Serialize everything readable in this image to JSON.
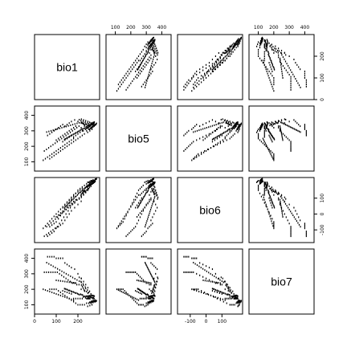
{
  "chart_data": {
    "type": "scatter",
    "title": "",
    "variables": [
      "bio1",
      "bio5",
      "bio6",
      "bio7"
    ],
    "ranges": {
      "bio1": [
        0,
        300
      ],
      "bio5": [
        40,
        460
      ],
      "bio6": [
        -180,
        230
      ],
      "bio7": [
        40,
        460
      ]
    },
    "ticks": {
      "bio1": [
        0,
        100,
        200
      ],
      "bio5": [
        100,
        200,
        300,
        400
      ],
      "bio6": [
        -100,
        0,
        100
      ],
      "bio7": [
        100,
        200,
        300,
        400
      ]
    },
    "tick_labels": {
      "bio1": {
        "top": [],
        "bottom": [
          "0",
          "100",
          "200"
        ],
        "left": [],
        "right": [
          "0",
          "100",
          "200"
        ]
      },
      "bio5": {
        "top": [
          "100",
          "200",
          "300",
          "400"
        ],
        "bottom": [],
        "left": [
          "100",
          "200",
          "300",
          "400"
        ],
        "right": []
      },
      "bio6": {
        "top": [],
        "bottom": [
          "-100",
          "0",
          "100"
        ],
        "left": [],
        "right": [
          "-100",
          "0",
          "100"
        ]
      },
      "bio7": {
        "top": [
          "100",
          "200",
          "300",
          "400"
        ],
        "bottom": [],
        "left": [
          "100",
          "200",
          "300",
          "400"
        ],
        "right": []
      }
    },
    "grid": false,
    "legend": "none",
    "point_color": "#000000",
    "samples": [
      [
        230,
        330,
        140,
        190
      ],
      [
        240,
        340,
        150,
        185
      ],
      [
        250,
        345,
        160,
        180
      ],
      [
        260,
        350,
        175,
        170
      ],
      [
        255,
        330,
        180,
        150
      ],
      [
        265,
        340,
        190,
        145
      ],
      [
        270,
        345,
        195,
        140
      ],
      [
        275,
        350,
        200,
        140
      ],
      [
        280,
        340,
        205,
        130
      ],
      [
        245,
        320,
        170,
        150
      ],
      [
        235,
        310,
        165,
        145
      ],
      [
        225,
        300,
        150,
        150
      ],
      [
        215,
        320,
        120,
        200
      ],
      [
        205,
        330,
        100,
        230
      ],
      [
        195,
        320,
        90,
        230
      ],
      [
        185,
        310,
        70,
        240
      ],
      [
        175,
        300,
        60,
        240
      ],
      [
        165,
        290,
        40,
        250
      ],
      [
        155,
        280,
        20,
        260
      ],
      [
        145,
        270,
        0,
        270
      ],
      [
        135,
        260,
        -20,
        280
      ],
      [
        125,
        250,
        -40,
        290
      ],
      [
        115,
        240,
        -60,
        300
      ],
      [
        105,
        230,
        -80,
        310
      ],
      [
        95,
        220,
        -90,
        310
      ],
      [
        85,
        210,
        -100,
        310
      ],
      [
        75,
        200,
        -110,
        310
      ],
      [
        65,
        190,
        -120,
        310
      ],
      [
        55,
        180,
        -130,
        310
      ],
      [
        45,
        170,
        -140,
        310
      ],
      [
        240,
        300,
        190,
        110
      ],
      [
        250,
        310,
        200,
        110
      ],
      [
        260,
        320,
        210,
        110
      ],
      [
        270,
        330,
        215,
        115
      ],
      [
        280,
        340,
        220,
        120
      ],
      [
        245,
        290,
        200,
        90
      ],
      [
        255,
        300,
        205,
        95
      ],
      [
        265,
        310,
        210,
        100
      ],
      [
        230,
        280,
        180,
        100
      ],
      [
        220,
        270,
        170,
        100
      ],
      [
        210,
        260,
        160,
        100
      ],
      [
        200,
        250,
        150,
        100
      ],
      [
        190,
        240,
        130,
        110
      ],
      [
        180,
        230,
        110,
        120
      ],
      [
        170,
        220,
        90,
        130
      ],
      [
        160,
        210,
        70,
        140
      ],
      [
        150,
        200,
        50,
        150
      ],
      [
        140,
        190,
        30,
        160
      ],
      [
        130,
        180,
        10,
        170
      ],
      [
        120,
        170,
        -10,
        180
      ],
      [
        110,
        160,
        -30,
        190
      ],
      [
        100,
        150,
        -50,
        200
      ],
      [
        90,
        140,
        -60,
        200
      ],
      [
        80,
        130,
        -70,
        200
      ],
      [
        70,
        120,
        -80,
        200
      ],
      [
        215,
        350,
        80,
        270
      ],
      [
        200,
        360,
        60,
        300
      ],
      [
        185,
        370,
        40,
        330
      ],
      [
        170,
        360,
        20,
        340
      ],
      [
        160,
        350,
        0,
        350
      ],
      [
        150,
        340,
        -20,
        360
      ],
      [
        140,
        330,
        -40,
        370
      ],
      [
        130,
        340,
        -60,
        400
      ],
      [
        120,
        330,
        -70,
        400
      ],
      [
        110,
        320,
        -80,
        400
      ],
      [
        100,
        310,
        -90,
        400
      ],
      [
        90,
        300,
        -110,
        410
      ],
      [
        80,
        290,
        -120,
        410
      ],
      [
        70,
        280,
        -130,
        410
      ],
      [
        60,
        270,
        -140,
        410
      ],
      [
        250,
        330,
        180,
        150
      ],
      [
        258,
        335,
        185,
        150
      ],
      [
        262,
        338,
        190,
        148
      ],
      [
        268,
        342,
        196,
        146
      ],
      [
        272,
        344,
        198,
        146
      ],
      [
        238,
        325,
        170,
        155
      ],
      [
        242,
        328,
        172,
        156
      ],
      [
        248,
        332,
        176,
        156
      ],
      [
        252,
        336,
        178,
        158
      ],
      [
        256,
        339,
        182,
        157
      ],
      [
        233,
        318,
        165,
        153
      ],
      [
        228,
        315,
        160,
        155
      ],
      [
        222,
        312,
        150,
        162
      ],
      [
        218,
        310,
        145,
        165
      ],
      [
        212,
        306,
        138,
        168
      ],
      [
        208,
        300,
        135,
        165
      ],
      [
        202,
        296,
        128,
        168
      ],
      [
        198,
        292,
        120,
        172
      ],
      [
        192,
        288,
        112,
        176
      ],
      [
        188,
        284,
        108,
        176
      ],
      [
        182,
        280,
        100,
        180
      ],
      [
        178,
        276,
        92,
        184
      ],
      [
        172,
        272,
        88,
        184
      ],
      [
        168,
        268,
        80,
        188
      ],
      [
        162,
        264,
        72,
        192
      ],
      [
        158,
        260,
        68,
        192
      ],
      [
        152,
        256,
        60,
        196
      ],
      [
        148,
        252,
        52,
        200
      ],
      [
        142,
        248,
        46,
        202
      ],
      [
        138,
        244,
        40,
        204
      ],
      [
        275,
        330,
        210,
        120
      ],
      [
        278,
        336,
        212,
        124
      ],
      [
        282,
        340,
        218,
        122
      ],
      [
        284,
        344,
        220,
        124
      ],
      [
        286,
        348,
        222,
        126
      ],
      [
        270,
        326,
        206,
        120
      ],
      [
        266,
        322,
        204,
        118
      ],
      [
        262,
        318,
        202,
        116
      ],
      [
        258,
        314,
        198,
        116
      ],
      [
        254,
        310,
        194,
        116
      ],
      [
        246,
        335,
        160,
        175
      ],
      [
        236,
        345,
        140,
        205
      ],
      [
        226,
        350,
        125,
        225
      ],
      [
        216,
        355,
        110,
        245
      ],
      [
        206,
        352,
        100,
        252
      ],
      [
        196,
        348,
        88,
        260
      ],
      [
        186,
        344,
        76,
        268
      ],
      [
        176,
        340,
        64,
        276
      ],
      [
        166,
        336,
        52,
        284
      ],
      [
        156,
        332,
        40,
        292
      ],
      [
        146,
        328,
        28,
        300
      ],
      [
        136,
        324,
        16,
        308
      ],
      [
        126,
        320,
        4,
        316
      ],
      [
        116,
        316,
        -8,
        324
      ],
      [
        106,
        312,
        -20,
        332
      ],
      [
        96,
        308,
        -32,
        340
      ],
      [
        86,
        304,
        -44,
        348
      ],
      [
        76,
        300,
        -56,
        356
      ],
      [
        66,
        296,
        -68,
        364
      ],
      [
        56,
        292,
        -80,
        372
      ],
      [
        246,
        360,
        150,
        210
      ],
      [
        236,
        365,
        135,
        230
      ],
      [
        226,
        370,
        120,
        250
      ],
      [
        216,
        375,
        105,
        270
      ],
      [
        206,
        372,
        95,
        277
      ],
      [
        254,
        355,
        168,
        187
      ],
      [
        244,
        350,
        155,
        195
      ],
      [
        234,
        356,
        142,
        214
      ],
      [
        224,
        362,
        128,
        234
      ],
      [
        214,
        366,
        116,
        250
      ],
      [
        180,
        250,
        120,
        130
      ],
      [
        170,
        240,
        105,
        135
      ],
      [
        160,
        230,
        90,
        140
      ],
      [
        150,
        220,
        75,
        145
      ],
      [
        140,
        210,
        60,
        150
      ],
      [
        130,
        200,
        45,
        155
      ],
      [
        120,
        190,
        30,
        160
      ],
      [
        110,
        180,
        15,
        165
      ],
      [
        100,
        170,
        0,
        170
      ],
      [
        90,
        160,
        -15,
        175
      ],
      [
        80,
        150,
        -30,
        180
      ],
      [
        70,
        140,
        -45,
        185
      ],
      [
        60,
        130,
        -60,
        190
      ],
      [
        50,
        120,
        -75,
        195
      ],
      [
        40,
        110,
        -90,
        200
      ],
      [
        200,
        280,
        140,
        140
      ],
      [
        210,
        290,
        150,
        140
      ],
      [
        220,
        300,
        160,
        140
      ],
      [
        190,
        270,
        130,
        140
      ],
      [
        180,
        260,
        120,
        140
      ],
      [
        170,
        270,
        100,
        170
      ],
      [
        160,
        260,
        85,
        175
      ],
      [
        150,
        250,
        70,
        180
      ],
      [
        140,
        240,
        55,
        185
      ],
      [
        130,
        230,
        40,
        190
      ],
      [
        262,
        322,
        200,
        122
      ],
      [
        266,
        326,
        204,
        122
      ],
      [
        270,
        332,
        206,
        126
      ],
      [
        274,
        336,
        210,
        126
      ],
      [
        278,
        340,
        214,
        126
      ],
      [
        240,
        315,
        175,
        140
      ],
      [
        244,
        318,
        178,
        140
      ],
      [
        248,
        322,
        182,
        140
      ],
      [
        252,
        326,
        186,
        140
      ],
      [
        256,
        330,
        190,
        140
      ],
      [
        190,
        330,
        90,
        240
      ],
      [
        180,
        320,
        78,
        242
      ],
      [
        170,
        310,
        66,
        244
      ],
      [
        160,
        300,
        54,
        246
      ],
      [
        150,
        290,
        42,
        248
      ],
      [
        140,
        280,
        30,
        250
      ],
      [
        130,
        270,
        18,
        252
      ],
      [
        120,
        260,
        6,
        254
      ],
      [
        110,
        250,
        -6,
        256
      ],
      [
        100,
        240,
        -18,
        258
      ],
      [
        260,
        345,
        185,
        160
      ],
      [
        264,
        348,
        188,
        160
      ],
      [
        268,
        352,
        192,
        160
      ],
      [
        272,
        354,
        196,
        158
      ],
      [
        276,
        356,
        200,
        156
      ],
      [
        232,
        338,
        150,
        188
      ],
      [
        228,
        342,
        144,
        198
      ],
      [
        224,
        346,
        138,
        208
      ],
      [
        220,
        350,
        132,
        218
      ],
      [
        216,
        354,
        126,
        228
      ]
    ]
  }
}
